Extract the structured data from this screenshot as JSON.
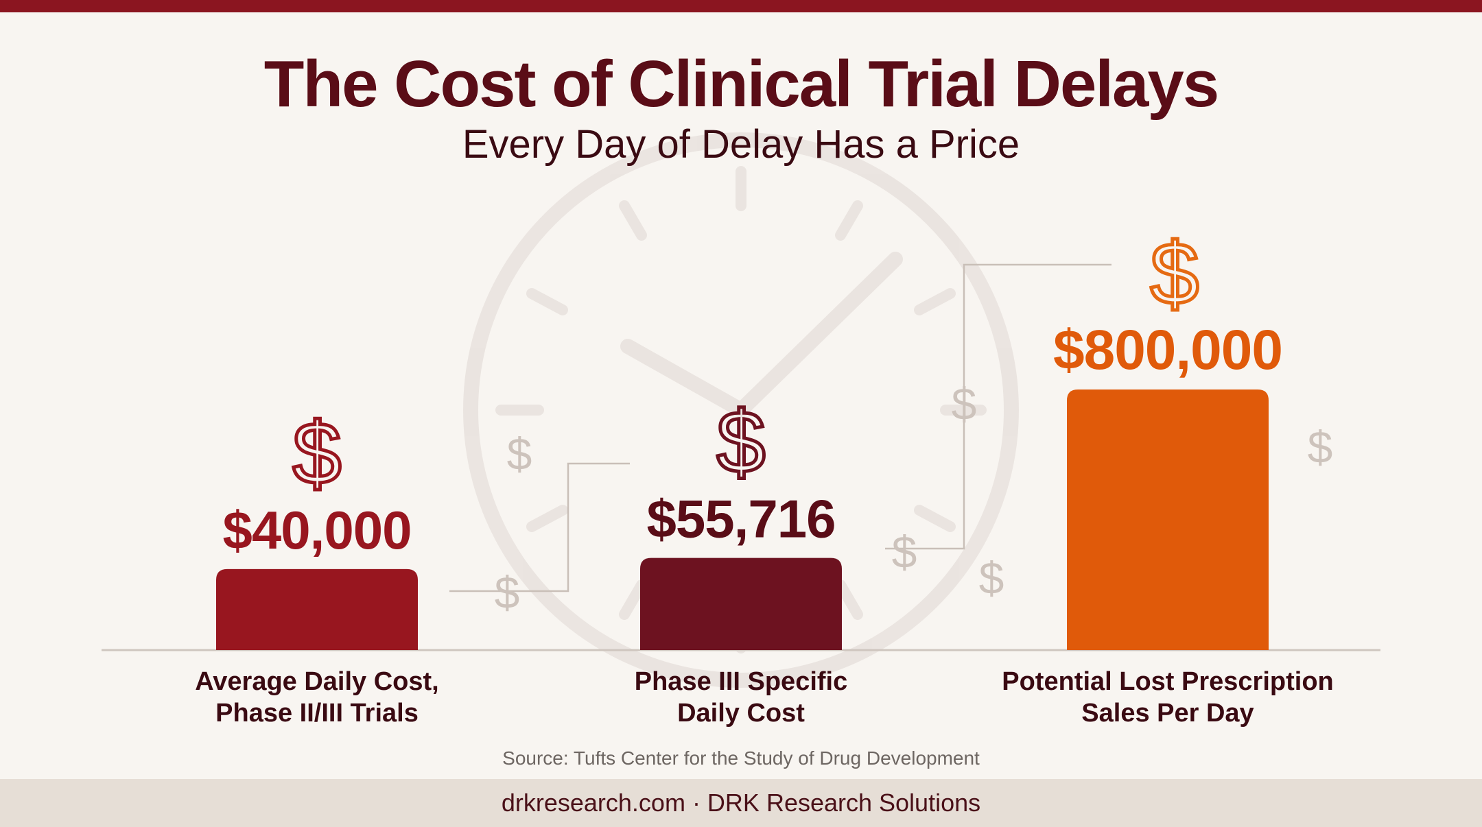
{
  "title": "The Cost of Clinical Trial Delays",
  "subtitle": "Every Day of Delay Has a Price",
  "source": "Source: Tufts Center for the Study of Drug Development",
  "footer": "drkresearch.com · DRK Research Solutions",
  "colors": {
    "brand_dark": "#5a0d17",
    "bar_1": "#98161f",
    "bar_2": "#6d1220",
    "bar_3": "#e05a0a",
    "background": "#f8f5f1"
  },
  "icons": [
    "dollar-icon",
    "clock-watermark"
  ],
  "chart_data": {
    "type": "bar",
    "categories": [
      "Average Daily Cost, Phase II/III Trials",
      "Phase III Specific Daily Cost",
      "Potential Lost Prescription Sales Per Day"
    ],
    "category_lines": [
      [
        "Average Daily Cost,",
        "Phase II/III Trials"
      ],
      [
        "Phase III Specific",
        "Daily Cost"
      ],
      [
        "Potential Lost Prescription",
        "Sales Per Day"
      ]
    ],
    "values": [
      40000,
      55716,
      800000
    ],
    "value_labels": [
      "$40,000",
      "$55,716",
      "$800,000"
    ],
    "scale": "non-linear (illustrative)",
    "grid": false,
    "legend": "none"
  }
}
